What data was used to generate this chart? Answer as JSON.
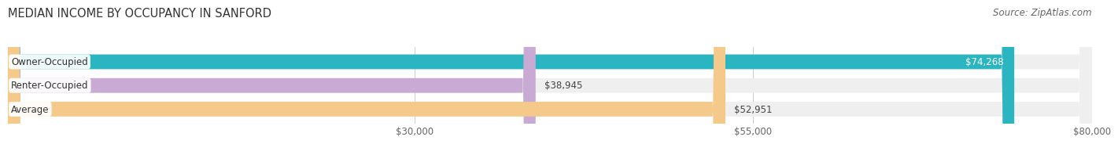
{
  "title": "MEDIAN INCOME BY OCCUPANCY IN SANFORD",
  "source": "Source: ZipAtlas.com",
  "categories": [
    "Owner-Occupied",
    "Renter-Occupied",
    "Average"
  ],
  "values": [
    74268,
    38945,
    52951
  ],
  "bar_colors": [
    "#2bb5c1",
    "#c9aad4",
    "#f5c98a"
  ],
  "bar_bg_color": "#efefef",
  "bar_labels": [
    "$74,268",
    "$38,945",
    "$52,951"
  ],
  "label_colors": [
    "#ffffff",
    "#555555",
    "#555555"
  ],
  "xlim": [
    0,
    80000
  ],
  "xticks": [
    30000,
    55000,
    80000
  ],
  "xtick_labels": [
    "$30,000",
    "$55,000",
    "$80,000"
  ],
  "title_fontsize": 10.5,
  "source_fontsize": 8.5,
  "label_fontsize": 8.5,
  "cat_fontsize": 8.5,
  "bar_height": 0.62,
  "background_color": "#ffffff",
  "grid_color": "#cccccc"
}
